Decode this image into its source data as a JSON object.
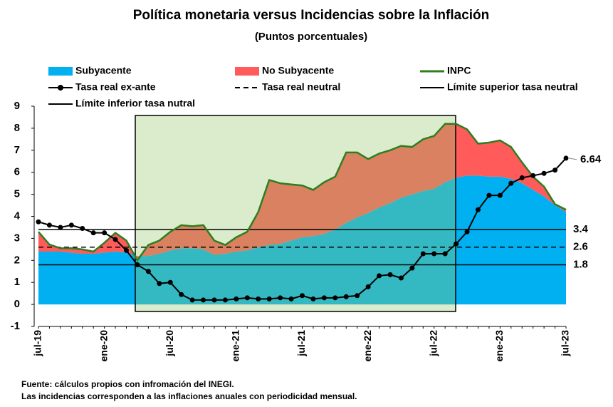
{
  "chart_data": {
    "type": "area_line",
    "title": "Política monetaria versus Incidencias sobre la Inflación",
    "subtitle": "(Puntos porcentuales)",
    "categories": [
      "jul-19",
      null,
      null,
      null,
      null,
      null,
      "ene-20",
      null,
      null,
      null,
      null,
      null,
      "jul-20",
      null,
      null,
      null,
      null,
      null,
      "ene-21",
      null,
      null,
      null,
      null,
      null,
      "jul-21",
      null,
      null,
      null,
      null,
      null,
      "ene-22",
      null,
      null,
      null,
      null,
      null,
      "jul-22",
      null,
      null,
      null,
      null,
      null,
      "ene-23",
      null,
      null,
      null,
      null,
      null,
      "jul-23"
    ],
    "series": [
      {
        "name": "Subyacente",
        "kind": "area",
        "color": "#00b0f0",
        "values": [
          2.4,
          2.4,
          2.4,
          2.35,
          2.3,
          2.3,
          2.35,
          2.4,
          2.35,
          2.2,
          2.2,
          2.3,
          2.45,
          2.55,
          2.55,
          2.5,
          2.25,
          2.3,
          2.4,
          2.45,
          2.6,
          2.7,
          2.75,
          2.9,
          3.05,
          3.1,
          3.2,
          3.4,
          3.7,
          3.95,
          4.15,
          4.4,
          4.6,
          4.85,
          5.0,
          5.15,
          5.25,
          5.55,
          5.75,
          5.85,
          5.85,
          5.8,
          5.8,
          5.7,
          5.5,
          5.2,
          4.9,
          4.5,
          4.2
        ]
      },
      {
        "name": "No Subyacente",
        "kind": "area",
        "color": "#ff5b5b",
        "values": [
          0.9,
          0.32,
          0.15,
          0.2,
          0.2,
          0.1,
          0.45,
          0.85,
          0.55,
          -0.2,
          0.5,
          0.6,
          0.85,
          1.05,
          1.0,
          1.1,
          0.65,
          0.4,
          0.65,
          0.85,
          1.6,
          2.95,
          2.75,
          2.55,
          2.35,
          2.1,
          2.35,
          2.4,
          3.2,
          2.95,
          2.45,
          2.45,
          2.4,
          2.35,
          2.15,
          2.35,
          2.4,
          2.65,
          2.45,
          2.1,
          1.45,
          1.55,
          1.65,
          1.45,
          0.95,
          0.6,
          0.45,
          0.05,
          0.1
        ]
      },
      {
        "name": "INPC",
        "kind": "line",
        "color": "#2e7d1f",
        "values": [
          3.3,
          2.72,
          2.55,
          2.55,
          2.5,
          2.4,
          2.8,
          3.25,
          2.9,
          2.0,
          2.7,
          2.9,
          3.3,
          3.6,
          3.55,
          3.6,
          2.9,
          2.7,
          3.05,
          3.3,
          4.2,
          5.65,
          5.5,
          5.45,
          5.4,
          5.2,
          5.55,
          5.8,
          6.9,
          6.9,
          6.6,
          6.85,
          7.0,
          7.2,
          7.15,
          7.5,
          7.65,
          8.2,
          8.2,
          7.95,
          7.3,
          7.35,
          7.45,
          7.15,
          6.45,
          5.8,
          5.35,
          4.55,
          4.3
        ]
      },
      {
        "name": "Tasa real ex-ante",
        "kind": "marker_line",
        "color": "#000000",
        "values": [
          3.75,
          3.6,
          3.5,
          3.6,
          3.45,
          3.25,
          3.25,
          2.95,
          2.45,
          1.8,
          1.5,
          0.95,
          1.0,
          0.45,
          0.2,
          0.2,
          0.2,
          0.2,
          0.25,
          0.3,
          0.25,
          0.25,
          0.3,
          0.25,
          0.4,
          0.25,
          0.3,
          0.3,
          0.35,
          0.4,
          0.8,
          1.3,
          1.35,
          1.2,
          1.65,
          2.3,
          2.3,
          2.3,
          2.75,
          3.3,
          4.3,
          4.95,
          4.95,
          5.5,
          5.75,
          5.85,
          5.95,
          6.1,
          6.64
        ]
      }
    ],
    "reference_lines": [
      {
        "name": "Tasa real neutral",
        "value": 2.6,
        "style": "dashed",
        "color": "#000000"
      },
      {
        "name": "Límite superior tasa neutral",
        "value": 3.4,
        "style": "solid",
        "color": "#000000"
      },
      {
        "name": "Límite inferior tasa nutral",
        "value": 1.8,
        "style": "solid",
        "color": "#000000"
      }
    ],
    "ylim": [
      -1,
      9
    ],
    "yticks": [
      -1,
      0,
      1,
      2,
      3,
      4,
      5,
      6,
      7,
      8,
      9
    ],
    "footnotes": [
      "Fuente: cálculos propios con infromación del INEGI.",
      "Las incidencias corresponden a las inflaciones anuales con periodicidad mensual."
    ]
  }
}
